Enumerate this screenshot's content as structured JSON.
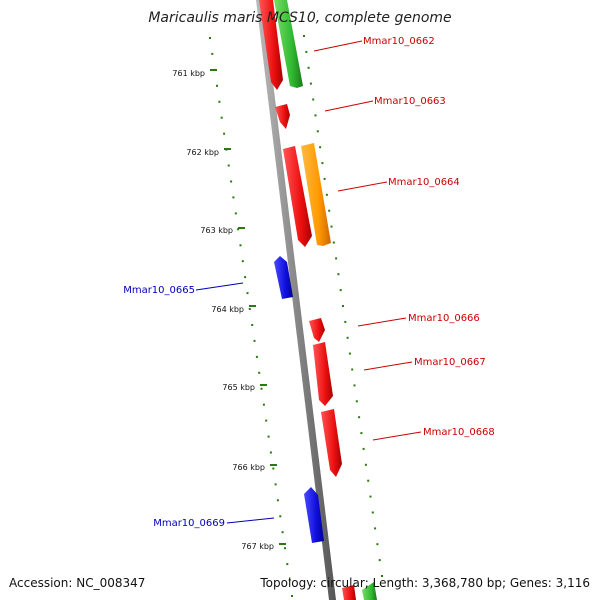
{
  "title": "Maricaulis maris MCS10, complete genome",
  "accession": "Accession: NC_008347",
  "summary": "Topology: circular; Length: 3,368,780 bp; Genes: 3,116",
  "colors": {
    "forward_gene": "#ee1111",
    "reverse_gene": "#1010dd",
    "green_feature": "#33bb33",
    "orange_feature": "#ff9900",
    "backbone": "#888888",
    "tick": "#2a7a10",
    "label_red": "#cc0000",
    "label_blue": "#0000bb"
  },
  "ticks": [
    {
      "label": "761 kbp"
    },
    {
      "label": "762 kbp"
    },
    {
      "label": "763 kbp"
    },
    {
      "label": "764 kbp"
    },
    {
      "label": "765 kbp"
    },
    {
      "label": "766 kbp"
    },
    {
      "label": "767 kbp"
    }
  ],
  "genes": [
    {
      "name": "Mmar10_0662",
      "strand": "forward"
    },
    {
      "name": "Mmar10_0663",
      "strand": "forward"
    },
    {
      "name": "Mmar10_0664",
      "strand": "forward"
    },
    {
      "name": "Mmar10_0665",
      "strand": "reverse"
    },
    {
      "name": "Mmar10_0666",
      "strand": "forward"
    },
    {
      "name": "Mmar10_0667",
      "strand": "forward"
    },
    {
      "name": "Mmar10_0668",
      "strand": "forward"
    },
    {
      "name": "Mmar10_0669",
      "strand": "reverse"
    }
  ]
}
